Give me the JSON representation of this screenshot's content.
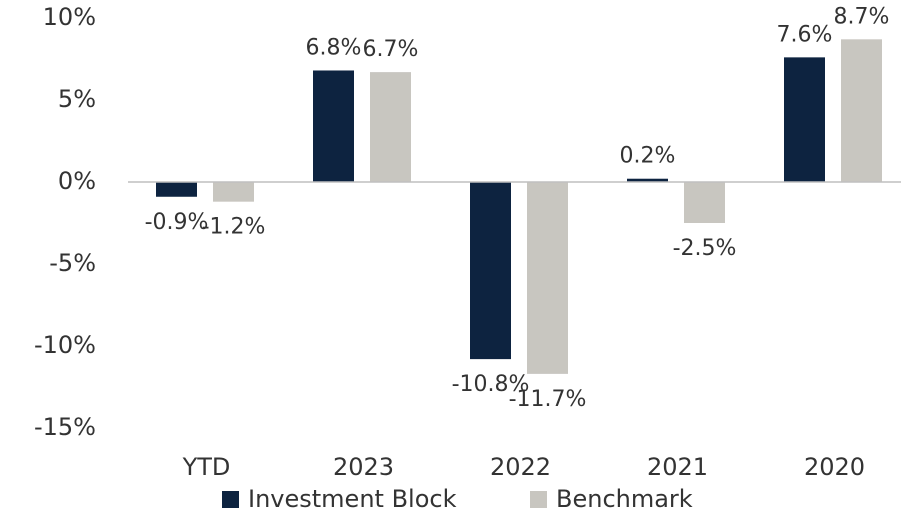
{
  "chart_data": {
    "type": "bar",
    "categories": [
      "YTD",
      "2023",
      "2022",
      "2021",
      "2020"
    ],
    "series": [
      {
        "name": "Investment Block",
        "color": "#0d2340",
        "values": [
          -0.9,
          6.8,
          -10.8,
          0.2,
          7.6
        ],
        "value_labels": [
          "-0.9%",
          "6.8%",
          "-10.8%",
          "0.2%",
          "7.6%"
        ]
      },
      {
        "name": "Benchmark",
        "color": "#c8c6c0",
        "values": [
          -1.2,
          6.7,
          -11.7,
          -2.5,
          8.7
        ],
        "value_labels": [
          "-1.2%",
          "6.7%",
          "-11.7%",
          "-2.5%",
          "8.7%"
        ]
      }
    ],
    "ylim": [
      -15,
      11
    ],
    "yticks": [
      {
        "value": 10,
        "label": "10%"
      },
      {
        "value": 5,
        "label": "5%"
      },
      {
        "value": 0,
        "label": "0%"
      },
      {
        "value": -5,
        "label": "-5%"
      },
      {
        "value": -10,
        "label": "-10%"
      },
      {
        "value": -15,
        "label": "-15%"
      }
    ],
    "legend": "bottom"
  }
}
